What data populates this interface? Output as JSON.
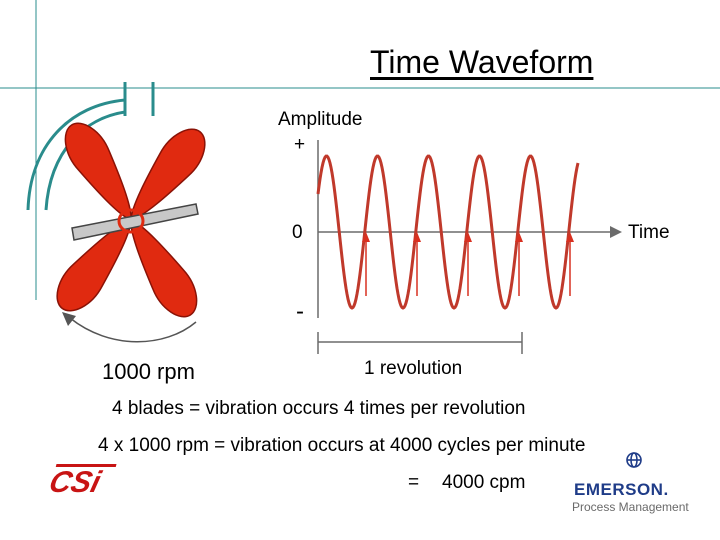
{
  "title": "Time Waveform",
  "axis": {
    "amplitude_label": "Amplitude",
    "plus": "+",
    "zero": "0",
    "minus": "-",
    "time_label": "Time"
  },
  "revolution_label": "1 revolution",
  "speed_label": "1000 rpm",
  "text": {
    "line1": "4   blades = vibration occurs 4 times per revolution",
    "line2": "4 x 1000 rpm = vibration occurs at 4000 cycles per minute",
    "equals": "=",
    "result": "4000 cpm"
  },
  "logos": {
    "csi": "CSi",
    "emerson": "EMERSON.",
    "emerson_sub": "Process Management"
  },
  "colors": {
    "waveform": "#c0392b",
    "blades": "#e02a10",
    "arrows": "#d83020",
    "decor_lines": "#2a8c8c",
    "emerson_blue": "#1f3c88"
  },
  "waveform": {
    "cycles_shown": 4,
    "blades": 4
  }
}
